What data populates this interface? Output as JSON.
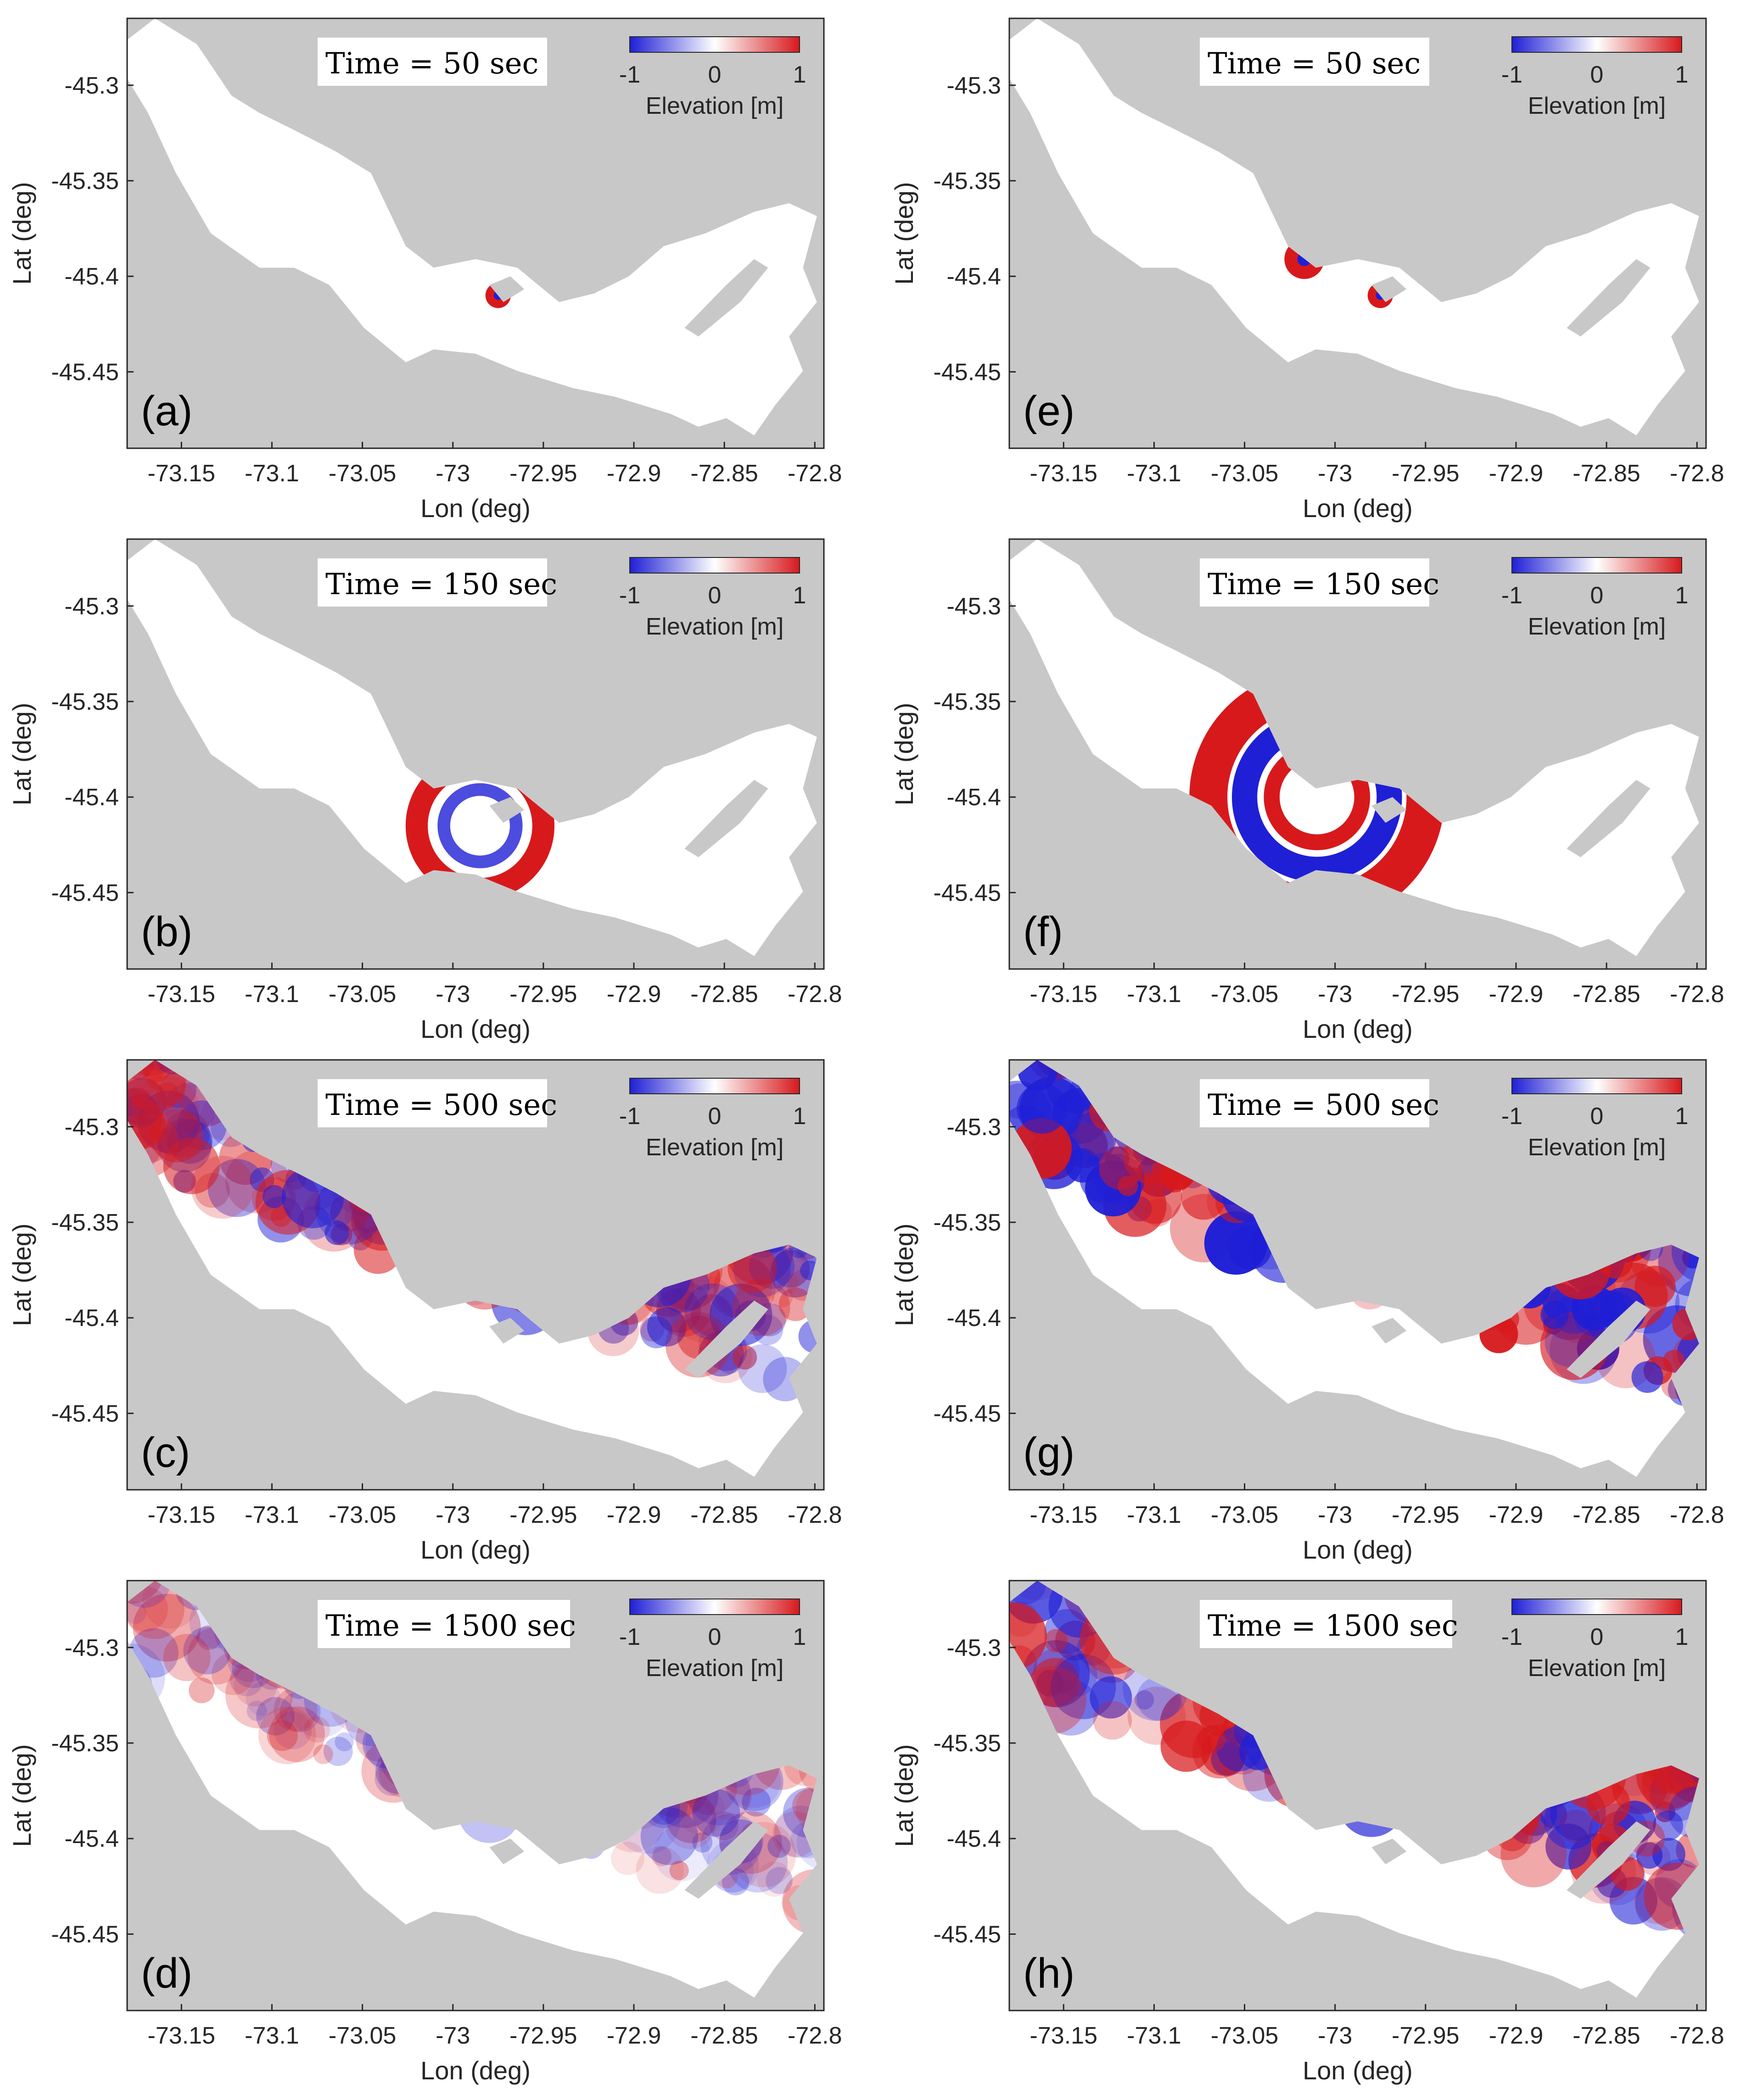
{
  "figure": {
    "colors": {
      "land": "#c8c8c8",
      "water": "#ffffff",
      "positive": "#d7191c",
      "negative": "#1f1fd6",
      "axis": "#262626"
    },
    "xlabel": "Lon (deg)",
    "ylabel": "Lat (deg)",
    "colorbar": {
      "label": "Elevation [m]",
      "ticks": [
        "-1",
        "0",
        "1"
      ],
      "range": [
        -1,
        1
      ]
    }
  },
  "chart_data": [
    {
      "id": "a",
      "panel_label": "(a)",
      "time_label": "Time = 50 sec",
      "time_s": 50,
      "scenario": "left",
      "type": "heatmap",
      "xlim": [
        -73.18,
        -72.795
      ],
      "ylim": [
        -45.49,
        -45.265
      ],
      "xticks": [
        "-73.15",
        "-73.1",
        "-73.05",
        "-73",
        "-72.95",
        "-72.9",
        "-72.85",
        "-72.8"
      ],
      "yticks": [
        "-45.3",
        "-45.35",
        "-45.4",
        "-45.45"
      ],
      "features": [
        {
          "kind": "source",
          "lon": -72.975,
          "lat": -45.41,
          "radius_deg": 0.007,
          "elevation": 1
        }
      ]
    },
    {
      "id": "b",
      "panel_label": "(b)",
      "time_label": "Time = 150 sec",
      "time_s": 150,
      "scenario": "left",
      "type": "heatmap",
      "xlim": [
        -73.18,
        -72.795
      ],
      "ylim": [
        -45.49,
        -45.265
      ],
      "xticks": [
        "-73.15",
        "-73.1",
        "-73.05",
        "-73",
        "-72.95",
        "-72.9",
        "-72.85",
        "-72.8"
      ],
      "yticks": [
        "-45.3",
        "-45.35",
        "-45.4",
        "-45.45"
      ],
      "features": [
        {
          "kind": "ring",
          "lon": -72.985,
          "lat": -45.415,
          "radius_deg": 0.035,
          "elevation": 1
        },
        {
          "kind": "ring",
          "lon": -72.985,
          "lat": -45.415,
          "radius_deg": 0.02,
          "elevation": -0.8
        }
      ]
    },
    {
      "id": "c",
      "panel_label": "(c)",
      "time_label": "Time = 500 sec",
      "time_s": 500,
      "scenario": "left",
      "type": "heatmap",
      "xlim": [
        -73.18,
        -72.795
      ],
      "ylim": [
        -45.49,
        -45.265
      ],
      "xticks": [
        "-73.15",
        "-73.1",
        "-73.05",
        "-73",
        "-72.95",
        "-72.9",
        "-72.85",
        "-72.8"
      ],
      "yticks": [
        "-45.3",
        "-45.35",
        "-45.4",
        "-45.45"
      ],
      "features": [
        {
          "kind": "field",
          "amplitude": 0.6
        }
      ]
    },
    {
      "id": "d",
      "panel_label": "(d)",
      "time_label": "Time = 1500 sec",
      "time_s": 1500,
      "scenario": "left",
      "type": "heatmap",
      "xlim": [
        -73.18,
        -72.795
      ],
      "ylim": [
        -45.49,
        -45.265
      ],
      "xticks": [
        "-73.15",
        "-73.1",
        "-73.05",
        "-73",
        "-72.95",
        "-72.9",
        "-72.85",
        "-72.8"
      ],
      "yticks": [
        "-45.3",
        "-45.35",
        "-45.4",
        "-45.45"
      ],
      "features": [
        {
          "kind": "field",
          "amplitude": 0.35
        }
      ]
    },
    {
      "id": "e",
      "panel_label": "(e)",
      "time_label": "Time = 50 sec",
      "time_s": 50,
      "scenario": "right",
      "type": "heatmap",
      "xlim": [
        -73.18,
        -72.795
      ],
      "ylim": [
        -45.49,
        -45.265
      ],
      "xticks": [
        "-73.15",
        "-73.1",
        "-73.05",
        "-73",
        "-72.95",
        "-72.9",
        "-72.85",
        "-72.8"
      ],
      "yticks": [
        "-45.3",
        "-45.35",
        "-45.4",
        "-45.45"
      ],
      "features": [
        {
          "kind": "source",
          "lon": -73.017,
          "lat": -45.391,
          "radius_deg": 0.011,
          "elevation": 1
        },
        {
          "kind": "source",
          "lon": -72.975,
          "lat": -45.41,
          "radius_deg": 0.007,
          "elevation": 1
        }
      ]
    },
    {
      "id": "f",
      "panel_label": "(f)",
      "time_label": "Time = 150 sec",
      "time_s": 150,
      "scenario": "right",
      "type": "heatmap",
      "xlim": [
        -73.18,
        -72.795
      ],
      "ylim": [
        -45.49,
        -45.265
      ],
      "xticks": [
        "-73.15",
        "-73.1",
        "-73.05",
        "-73",
        "-72.95",
        "-72.9",
        "-72.85",
        "-72.8"
      ],
      "yticks": [
        "-45.3",
        "-45.35",
        "-45.4",
        "-45.45"
      ],
      "features": [
        {
          "kind": "ring",
          "lon": -73.01,
          "lat": -45.4,
          "radius_deg": 0.06,
          "elevation": 1
        },
        {
          "kind": "ring",
          "lon": -73.01,
          "lat": -45.4,
          "radius_deg": 0.04,
          "elevation": -1
        },
        {
          "kind": "ring",
          "lon": -73.01,
          "lat": -45.4,
          "radius_deg": 0.025,
          "elevation": 1
        }
      ]
    },
    {
      "id": "g",
      "panel_label": "(g)",
      "time_label": "Time = 500 sec",
      "time_s": 500,
      "scenario": "right",
      "type": "heatmap",
      "xlim": [
        -73.18,
        -72.795
      ],
      "ylim": [
        -45.49,
        -45.265
      ],
      "xticks": [
        "-73.15",
        "-73.1",
        "-73.05",
        "-73",
        "-72.95",
        "-72.9",
        "-72.85",
        "-72.8"
      ],
      "yticks": [
        "-45.3",
        "-45.35",
        "-45.4",
        "-45.45"
      ],
      "features": [
        {
          "kind": "field",
          "amplitude": 1.0
        }
      ]
    },
    {
      "id": "h",
      "panel_label": "(h)",
      "time_label": "Time = 1500 sec",
      "time_s": 1500,
      "scenario": "right",
      "type": "heatmap",
      "xlim": [
        -73.18,
        -72.795
      ],
      "ylim": [
        -45.49,
        -45.265
      ],
      "xticks": [
        "-73.15",
        "-73.1",
        "-73.05",
        "-73",
        "-72.95",
        "-72.9",
        "-72.85",
        "-72.8"
      ],
      "yticks": [
        "-45.3",
        "-45.35",
        "-45.4",
        "-45.45"
      ],
      "features": [
        {
          "kind": "field",
          "amplitude": 0.75
        }
      ]
    }
  ]
}
